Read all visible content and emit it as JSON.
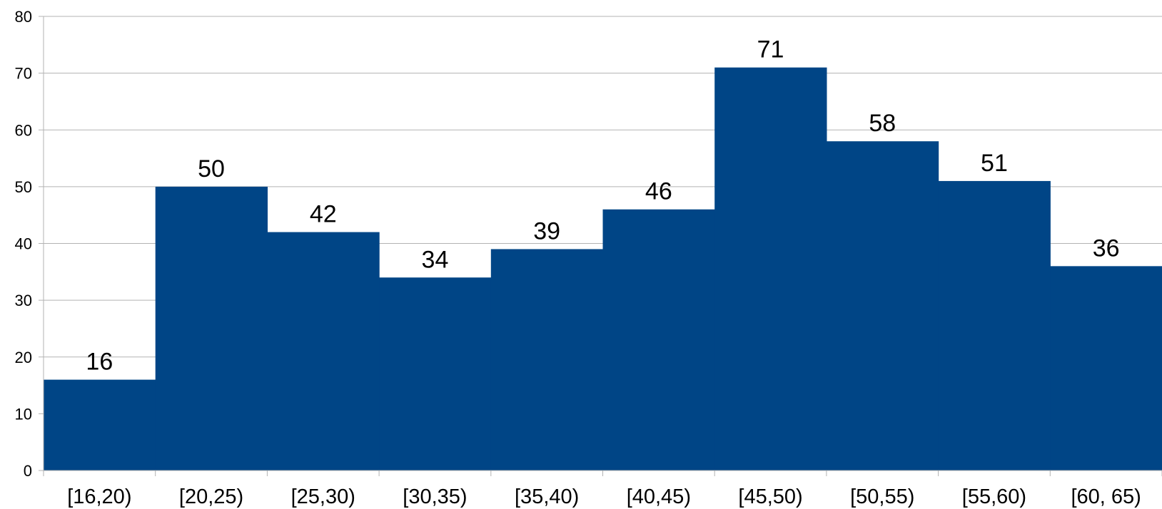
{
  "chart_data": {
    "type": "bar",
    "title": "",
    "xlabel": "",
    "ylabel": "",
    "categories": [
      "[16,20)",
      "[20,25)",
      "[25,30)",
      "[30,35)",
      "[35,40)",
      "[40,45)",
      "[45,50)",
      "[50,55)",
      "[55,60)",
      "[60, 65)"
    ],
    "values": [
      16,
      50,
      42,
      34,
      39,
      46,
      71,
      58,
      51,
      36
    ],
    "ylim": [
      0,
      80
    ],
    "yticks": [
      0,
      10,
      20,
      30,
      40,
      50,
      60,
      70,
      80
    ],
    "grid": true,
    "legend": "none",
    "data_labels": true,
    "bar_color": "#004586"
  }
}
